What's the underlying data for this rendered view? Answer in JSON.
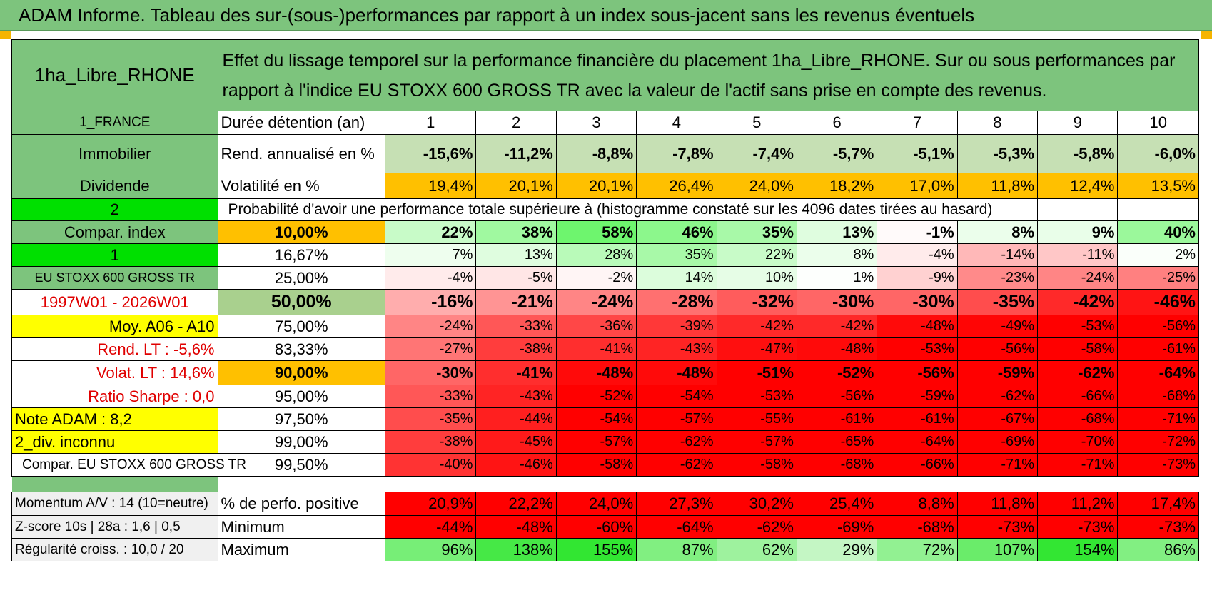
{
  "title": "ADAM Informe. Tableau des sur-(sous-)performances par rapport à un index sous-jacent sans les revenus éventuels",
  "header": {
    "fund": "1ha_Libre_RHONE",
    "description": "Effet du lissage temporel sur la performance financière du placement 1ha_Libre_RHONE. Sur ou sous performances par rapport à l'indice EU STOXX 600 GROSS TR avec la valeur de l'actif sans prise en compte des revenus."
  },
  "left": {
    "country": "1_FRANCE",
    "category": "Immobilier",
    "type": "Dividende",
    "num2": "2",
    "compar": "Compar. index",
    "num1": "1",
    "index_name": "EU STOXX 600 GROSS TR",
    "period": "1997W01 - 2026W01",
    "moy": "Moy. A06 - A10",
    "rend_lt": "Rend. LT :    -5,6%",
    "volat_lt": "Volat. LT :   14,6%",
    "sharpe": "Ratio Sharpe :     0,0",
    "note": "Note ADAM : 8,2",
    "div": "2_div. inconnu",
    "compar_full": "Compar. EU STOXX 600 GROSS TR",
    "momentum": "Momentum A/V : 14 (10=neutre)",
    "zscore": "Z-score 10s | 28a : 1,6 | 0,5",
    "regularite": "Régularité croiss. : 10,0 / 20"
  },
  "labels": {
    "duree": "Durée détention (an)",
    "rend": "Rend. annualisé en %",
    "volat": "Volatilité en %",
    "proba": "Probabilité d'avoir une performance totale supérieure à (histogramme constaté sur les 4096 dates tirées au hasard)",
    "perf_pos": "% de perfo. positive",
    "minimum": "Minimum",
    "maximum": "Maximum"
  },
  "years": [
    "1",
    "2",
    "3",
    "4",
    "5",
    "6",
    "7",
    "8",
    "9",
    "10"
  ],
  "rend": [
    "-15,6%",
    "-11,2%",
    "-8,8%",
    "-7,8%",
    "-7,4%",
    "-5,7%",
    "-5,1%",
    "-5,3%",
    "-5,8%",
    "-6,0%"
  ],
  "volat": [
    "19,4%",
    "20,1%",
    "20,1%",
    "26,4%",
    "24,0%",
    "18,2%",
    "17,0%",
    "11,8%",
    "12,4%",
    "13,5%"
  ],
  "perc_rows": [
    {
      "p": "10,00%",
      "v": [
        "22%",
        "38%",
        "58%",
        "46%",
        "35%",
        "13%",
        "-1%",
        "8%",
        "9%",
        "40%"
      ]
    },
    {
      "p": "16,67%",
      "v": [
        "7%",
        "13%",
        "28%",
        "35%",
        "22%",
        "8%",
        "-4%",
        "-14%",
        "-11%",
        "2%"
      ]
    },
    {
      "p": "25,00%",
      "v": [
        "-4%",
        "-5%",
        "-2%",
        "14%",
        "10%",
        "1%",
        "-9%",
        "-23%",
        "-24%",
        "-25%"
      ]
    },
    {
      "p": "50,00%",
      "v": [
        "-16%",
        "-21%",
        "-24%",
        "-28%",
        "-32%",
        "-30%",
        "-30%",
        "-35%",
        "-42%",
        "-46%"
      ]
    },
    {
      "p": "75,00%",
      "v": [
        "-24%",
        "-33%",
        "-36%",
        "-39%",
        "-42%",
        "-42%",
        "-48%",
        "-49%",
        "-53%",
        "-56%"
      ]
    },
    {
      "p": "83,33%",
      "v": [
        "-27%",
        "-38%",
        "-41%",
        "-43%",
        "-47%",
        "-48%",
        "-53%",
        "-56%",
        "-58%",
        "-61%"
      ]
    },
    {
      "p": "90,00%",
      "v": [
        "-30%",
        "-41%",
        "-48%",
        "-48%",
        "-51%",
        "-52%",
        "-56%",
        "-59%",
        "-62%",
        "-64%"
      ]
    },
    {
      "p": "95,00%",
      "v": [
        "-33%",
        "-43%",
        "-52%",
        "-54%",
        "-53%",
        "-56%",
        "-59%",
        "-62%",
        "-66%",
        "-68%"
      ]
    },
    {
      "p": "97,50%",
      "v": [
        "-35%",
        "-44%",
        "-54%",
        "-57%",
        "-55%",
        "-61%",
        "-61%",
        "-67%",
        "-68%",
        "-71%"
      ]
    },
    {
      "p": "99,00%",
      "v": [
        "-38%",
        "-45%",
        "-57%",
        "-62%",
        "-57%",
        "-65%",
        "-64%",
        "-69%",
        "-70%",
        "-72%"
      ]
    },
    {
      "p": "99,50%",
      "v": [
        "-40%",
        "-46%",
        "-58%",
        "-62%",
        "-58%",
        "-68%",
        "-66%",
        "-71%",
        "-71%",
        "-73%"
      ]
    }
  ],
  "perf_pos": [
    "20,9%",
    "22,2%",
    "24,0%",
    "27,3%",
    "30,2%",
    "25,4%",
    "8,8%",
    "11,8%",
    "11,2%",
    "17,4%"
  ],
  "minimum": [
    "-44%",
    "-48%",
    "-60%",
    "-64%",
    "-62%",
    "-69%",
    "-68%",
    "-73%",
    "-73%",
    "-73%"
  ],
  "maximum": [
    "96%",
    "138%",
    "155%",
    "87%",
    "62%",
    "29%",
    "72%",
    "107%",
    "154%",
    "86%"
  ],
  "colors": {
    "header_green": "#7dc47d",
    "bright_green": "#00e000",
    "yellow": "#ffff00",
    "orange": "#ffc000",
    "red_text": "#e00000",
    "rend_green": "#c6e0b4"
  }
}
